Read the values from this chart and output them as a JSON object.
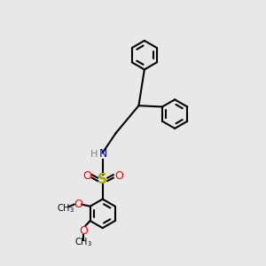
{
  "bg_color": "#e8e8e8",
  "black": "#000000",
  "red": "#ff0000",
  "blue": "#0000ff",
  "gray": "#808080",
  "yellow": "#cccc00",
  "lw": 1.5,
  "ring_r": 0.38,
  "xlim": [
    0,
    6
  ],
  "ylim": [
    0,
    7
  ]
}
